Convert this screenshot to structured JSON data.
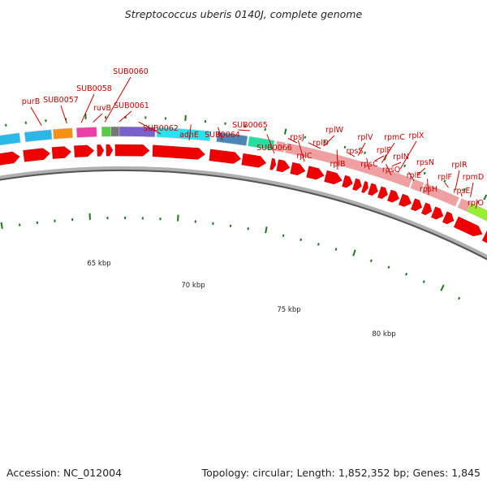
{
  "title": "Streptococcus uberis 0140J, complete genome",
  "footer": {
    "accession": "Accession: NC_012004",
    "topology": "Topology: circular; Length: 1,852,352 bp; Genes: 1,845"
  },
  "axis_labels": [
    "65 kbp",
    "70 kbp",
    "75 kbp",
    "80 kbp"
  ],
  "gene_labels": [
    "purB",
    "SUB0057",
    "SUB0058",
    "ruvB",
    "SUB0060",
    "SUB0061",
    "SUB0062",
    "adhE",
    "SUB0064",
    "SUB0065",
    "SUB0066",
    "rpsJ",
    "rplC",
    "rplD",
    "rplW",
    "rplB",
    "rpsS",
    "rplV",
    "rpsC",
    "rplP",
    "rpmC",
    "rpsQ",
    "rplN",
    "rplX",
    "rplE",
    "rpsN",
    "rpsH",
    "rplF",
    "rplR",
    "rpsE",
    "rpmD",
    "rplO"
  ],
  "colors": {
    "label": "#cc0000",
    "tick": "#1a7a1a",
    "forward_arrow": "#ee0000",
    "ribosomal_block": "#f0a0a0",
    "backbone": "#808080"
  }
}
